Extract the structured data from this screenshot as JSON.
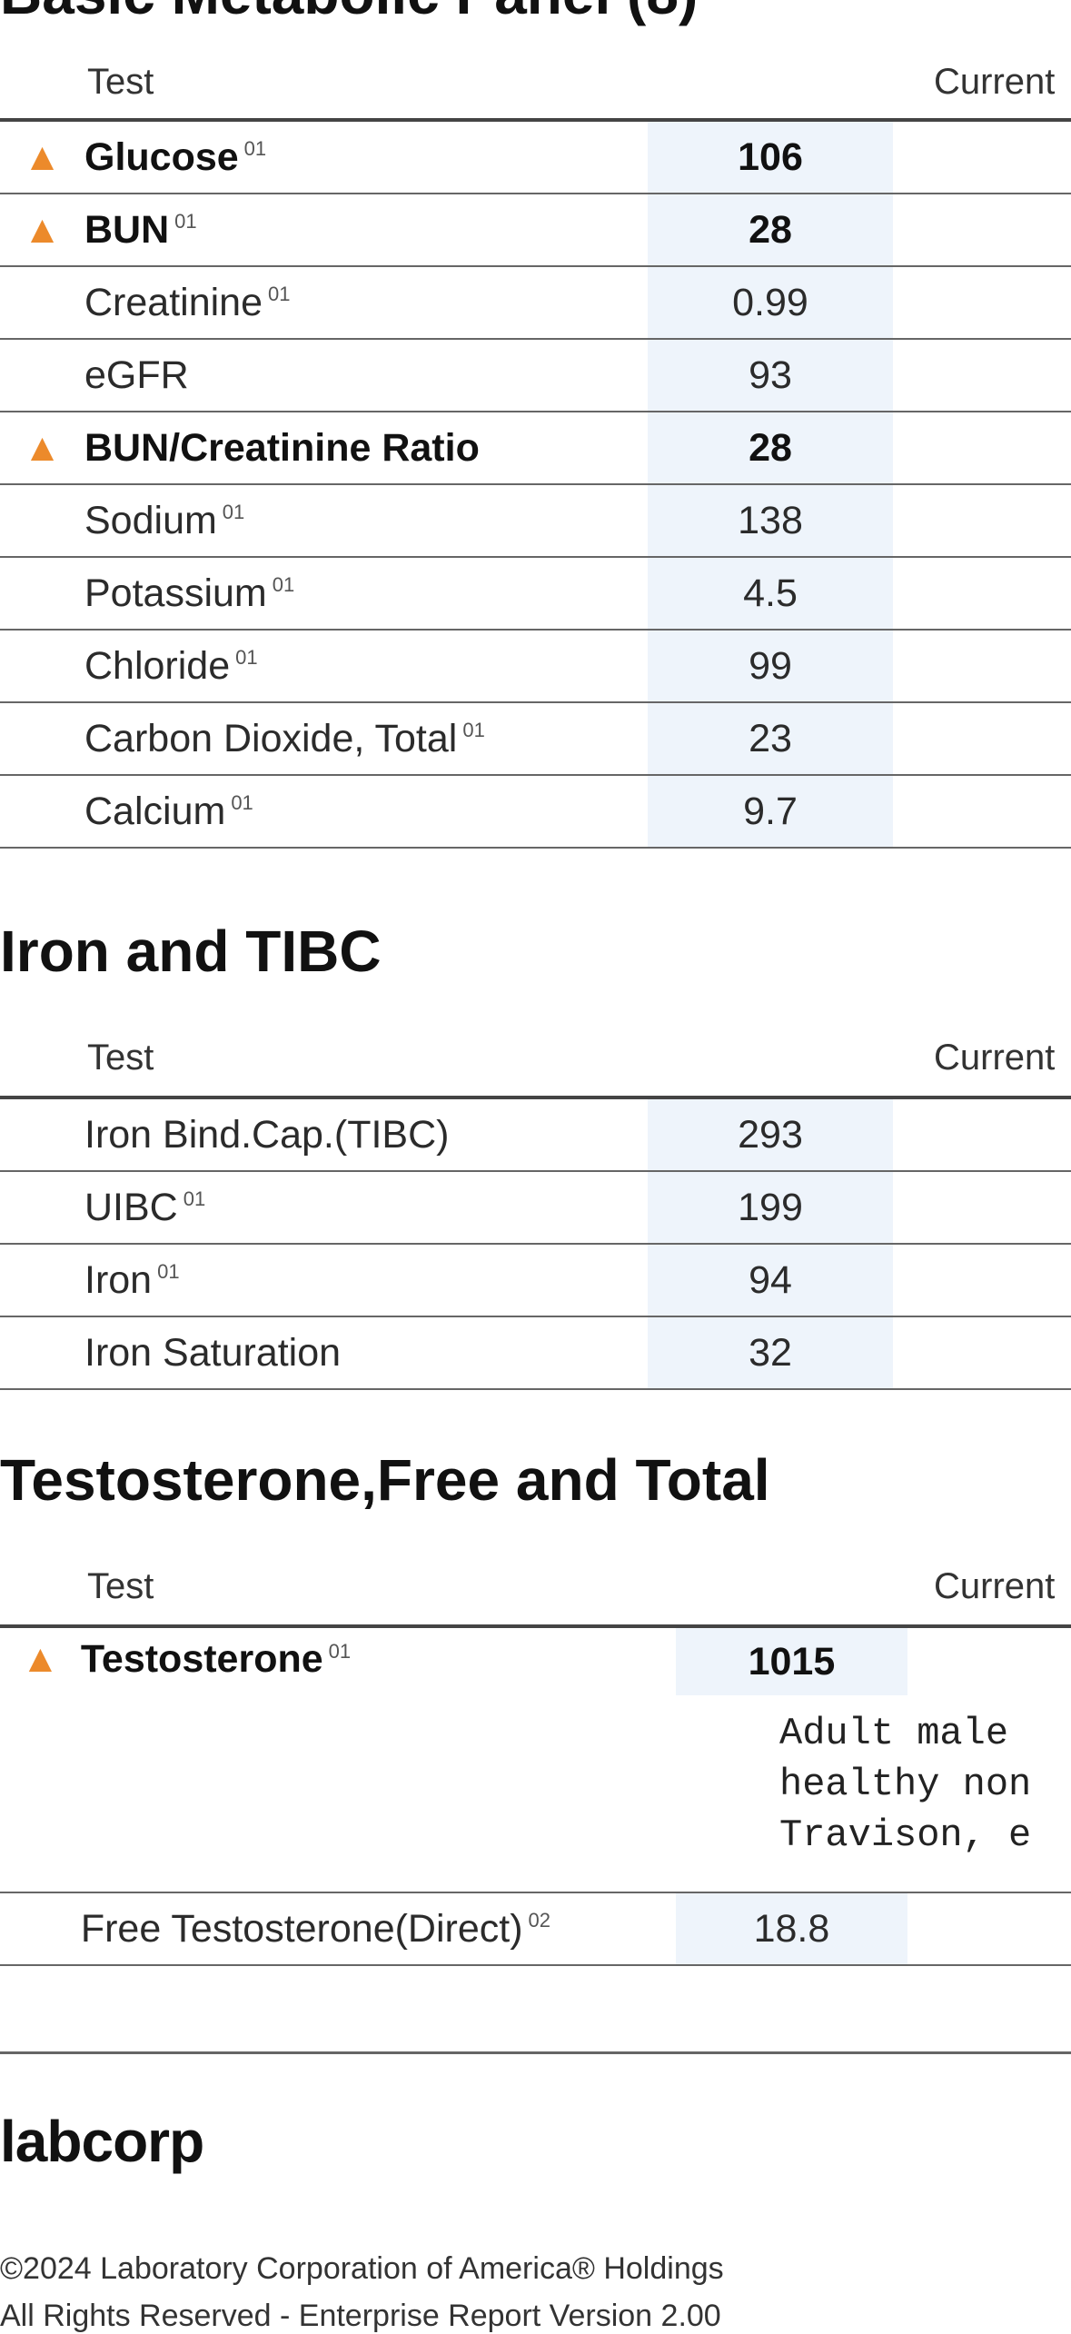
{
  "sections": [
    {
      "title": "Basic Metabolic Panel (8)",
      "col_test": "Test",
      "col_current": "Current",
      "rows": [
        {
          "flag": "▲",
          "name": "Glucose",
          "ref": "01",
          "value": "106",
          "abnormal": true
        },
        {
          "flag": "▲",
          "name": "BUN",
          "ref": "01",
          "value": "28",
          "abnormal": true
        },
        {
          "flag": "",
          "name": "Creatinine",
          "ref": "01",
          "value": "0.99",
          "abnormal": false
        },
        {
          "flag": "",
          "name": "eGFR",
          "ref": "",
          "value": "93",
          "abnormal": false
        },
        {
          "flag": "▲",
          "name": "BUN/Creatinine Ratio",
          "ref": "",
          "value": "28",
          "abnormal": true
        },
        {
          "flag": "",
          "name": "Sodium",
          "ref": "01",
          "value": "138",
          "abnormal": false
        },
        {
          "flag": "",
          "name": "Potassium",
          "ref": "01",
          "value": "4.5",
          "abnormal": false
        },
        {
          "flag": "",
          "name": "Chloride",
          "ref": "01",
          "value": "99",
          "abnormal": false
        },
        {
          "flag": "",
          "name": "Carbon Dioxide, Total",
          "ref": "01",
          "value": "23",
          "abnormal": false
        },
        {
          "flag": "",
          "name": "Calcium",
          "ref": "01",
          "value": "9.7",
          "abnormal": false
        }
      ]
    },
    {
      "title": "Iron and TIBC",
      "col_test": "Test",
      "col_current": "Current",
      "rows": [
        {
          "flag": "",
          "name": "Iron Bind.Cap.(TIBC)",
          "ref": "",
          "value": "293",
          "abnormal": false
        },
        {
          "flag": "",
          "name": "UIBC",
          "ref": "01",
          "value": "199",
          "abnormal": false
        },
        {
          "flag": "",
          "name": "Iron",
          "ref": "01",
          "value": "94",
          "abnormal": false
        },
        {
          "flag": "",
          "name": "Iron Saturation",
          "ref": "",
          "value": "32",
          "abnormal": false
        }
      ]
    },
    {
      "title": "Testosterone,Free and Total",
      "col_test": "Test",
      "col_current": "Current",
      "rows": [
        {
          "flag": "▲",
          "name": "Testosterone",
          "ref": "01",
          "value": "1015",
          "abnormal": true,
          "note": [
            "Adult male",
            "healthy non",
            "Travison, e"
          ]
        },
        {
          "flag": "",
          "name": "Free Testosterone(Direct)",
          "ref": "02",
          "value": "18.8",
          "abnormal": false
        }
      ]
    }
  ],
  "footer": {
    "logo": "labcorp",
    "copyright": "©2024 Laboratory Corporation of America® Holdings",
    "rights": "All Rights Reserved - Enterprise Report Version 2.00"
  },
  "colors": {
    "flag": "#ec8a2b",
    "current_column_bg": "#eef4fb"
  }
}
